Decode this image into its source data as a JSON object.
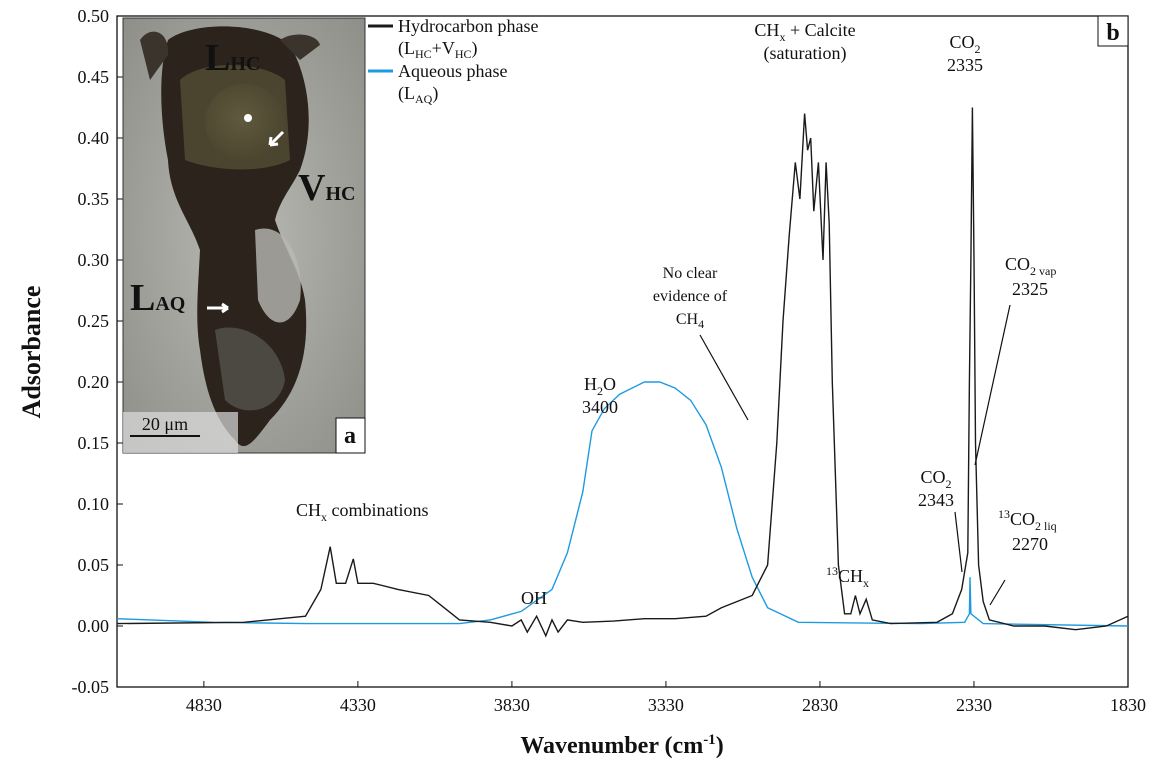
{
  "chart_data": {
    "type": "line",
    "x_label": [
      "Wavenumber (cm",
      "-1",
      ")"
    ],
    "y_label": "Adsorbance",
    "panel_labels": [
      "b",
      "a"
    ],
    "xlim": [
      5112,
      1830
    ],
    "xticks": [
      4830,
      4330,
      3830,
      3330,
      2830,
      2330,
      1830
    ],
    "ylim": [
      -0.05,
      0.5
    ],
    "yticks": [
      -0.05,
      {
        "value": 0,
        "label": "0.00"
      },
      0.05,
      {
        "value": 0.1,
        "label": "0.10"
      },
      0.15,
      {
        "value": 0.2,
        "label": "0.20"
      },
      0.25,
      {
        "value": 0.3,
        "label": "0.30"
      },
      0.35,
      {
        "value": 0.4,
        "label": "0.40"
      },
      0.45,
      {
        "value": 0.5,
        "label": "0.50"
      }
    ],
    "grid": false,
    "series": [
      {
        "name": "Hydrocarbon phase",
        "legend_note": [
          "(L",
          "HC",
          "+V",
          "HC",
          ")"
        ],
        "color": "#1a1a1a",
        "x": [
          5112,
          4700,
          4500,
          4450,
          4420,
          4400,
          4370,
          4345,
          4330,
          4280,
          4200,
          4100,
          4050,
          4000,
          3900,
          3830,
          3800,
          3780,
          3750,
          3720,
          3700,
          3680,
          3650,
          3600,
          3500,
          3400,
          3300,
          3200,
          3150,
          3100,
          3050,
          3000,
          2970,
          2950,
          2930,
          2910,
          2895,
          2880,
          2870,
          2860,
          2850,
          2835,
          2820,
          2810,
          2800,
          2790,
          2770,
          2750,
          2730,
          2715,
          2700,
          2680,
          2660,
          2600,
          2450,
          2400,
          2370,
          2350,
          2345,
          2340,
          2335,
          2330,
          2325,
          2315,
          2300,
          2280,
          2200,
          2100,
          2000,
          1900,
          1830
        ],
        "values": [
          0.002,
          0.003,
          0.008,
          0.03,
          0.065,
          0.035,
          0.035,
          0.055,
          0.035,
          0.035,
          0.03,
          0.025,
          0.015,
          0.005,
          0.003,
          0.0,
          0.005,
          -0.005,
          0.008,
          -0.008,
          0.005,
          -0.005,
          0.005,
          0.003,
          0.004,
          0.006,
          0.006,
          0.008,
          0.015,
          0.02,
          0.025,
          0.05,
          0.15,
          0.25,
          0.32,
          0.38,
          0.35,
          0.42,
          0.39,
          0.4,
          0.34,
          0.38,
          0.3,
          0.38,
          0.33,
          0.2,
          0.05,
          0.01,
          0.01,
          0.025,
          0.01,
          0.022,
          0.005,
          0.002,
          0.003,
          0.01,
          0.03,
          0.06,
          0.2,
          0.3,
          0.425,
          0.3,
          0.15,
          0.05,
          0.02,
          0.005,
          0.0,
          0.0,
          -0.003,
          0.0,
          0.008
        ]
      },
      {
        "name": "Aqueous phase",
        "legend_note": [
          "(L",
          "AQ",
          ")"
        ],
        "color": "#1e9be0",
        "x": [
          5112,
          4800,
          4500,
          4200,
          4000,
          3900,
          3800,
          3700,
          3650,
          3600,
          3570,
          3530,
          3480,
          3400,
          3350,
          3300,
          3250,
          3200,
          3150,
          3100,
          3050,
          3000,
          2900,
          2500,
          2360,
          2345,
          2343,
          2340,
          2300,
          1830
        ],
        "values": [
          0.006,
          0.003,
          0.002,
          0.002,
          0.002,
          0.005,
          0.012,
          0.03,
          0.06,
          0.11,
          0.16,
          0.178,
          0.19,
          0.2,
          0.2,
          0.195,
          0.185,
          0.165,
          0.13,
          0.08,
          0.04,
          0.015,
          0.003,
          0.002,
          0.003,
          0.01,
          0.04,
          0.01,
          0.002,
          0.0
        ]
      }
    ],
    "annotations": [
      "CH",
      "x",
      " combinations",
      "OH",
      "H",
      "2",
      "O",
      "3400",
      "No clear",
      "evidence of",
      "CH",
      "4",
      "CH",
      "x",
      " + Calcite",
      "(saturation)",
      "13",
      "CH",
      "x",
      "CO",
      "2",
      "2335",
      "CO",
      "2 vap",
      "2325",
      "CO",
      "2",
      "2343",
      "13",
      "CO",
      "2 liq",
      "2270"
    ],
    "inset": {
      "labels": [
        "L",
        "HC",
        "V",
        "HC",
        "L",
        "AQ"
      ],
      "scale": "20 μm"
    }
  }
}
